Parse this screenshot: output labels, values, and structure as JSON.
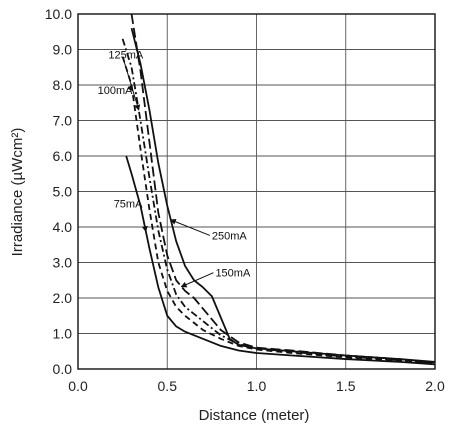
{
  "chart_data": {
    "type": "line",
    "title": "",
    "xlabel": "Distance (meter)",
    "ylabel": "Irradiance (µWcm²)",
    "xlim": [
      0.0,
      2.0
    ],
    "ylim": [
      0.0,
      10.0
    ],
    "xticks": [
      "0.0",
      "0.5",
      "1.0",
      "1.5",
      "2.0"
    ],
    "yticks": [
      "0.0",
      "1.0",
      "2.0",
      "3.0",
      "4.0",
      "5.0",
      "6.0",
      "7.0",
      "8.0",
      "9.0",
      "10.0"
    ],
    "grid": true,
    "series": [
      {
        "name": "250mA",
        "style": "solid",
        "x": [
          0.3,
          0.35,
          0.4,
          0.45,
          0.5,
          0.55,
          0.6,
          0.65,
          0.7,
          0.75,
          0.8,
          0.85,
          0.9,
          1.0,
          1.2,
          1.5,
          1.8,
          2.0
        ],
        "y": [
          9.6,
          8.6,
          7.3,
          5.8,
          4.6,
          3.6,
          2.9,
          2.5,
          2.3,
          2.05,
          1.45,
          0.85,
          0.68,
          0.58,
          0.5,
          0.38,
          0.28,
          0.2
        ]
      },
      {
        "name": "150mA",
        "style": "long-dash",
        "x": [
          0.3,
          0.35,
          0.4,
          0.45,
          0.5,
          0.55,
          0.6,
          0.65,
          0.7,
          0.8,
          0.9,
          1.0,
          1.2,
          1.5,
          1.8,
          2.0
        ],
        "y": [
          10.0,
          8.4,
          6.4,
          4.4,
          3.2,
          2.5,
          2.2,
          2.0,
          1.7,
          1.1,
          0.75,
          0.6,
          0.52,
          0.38,
          0.28,
          0.18
        ]
      },
      {
        "name": "125mA",
        "style": "dash-dot",
        "x": [
          0.25,
          0.3,
          0.35,
          0.4,
          0.45,
          0.5,
          0.55,
          0.6,
          0.7,
          0.8,
          0.9,
          1.0,
          1.2,
          1.5,
          1.8,
          2.0
        ],
        "y": [
          9.3,
          8.5,
          7.0,
          5.4,
          3.9,
          2.8,
          2.1,
          1.75,
          1.35,
          0.95,
          0.7,
          0.58,
          0.48,
          0.35,
          0.25,
          0.17
        ]
      },
      {
        "name": "100mA",
        "style": "dash",
        "x": [
          0.25,
          0.3,
          0.35,
          0.4,
          0.45,
          0.5,
          0.55,
          0.6,
          0.7,
          0.8,
          0.9,
          1.0,
          1.2,
          1.5,
          1.8,
          2.0
        ],
        "y": [
          8.8,
          8.0,
          6.2,
          4.5,
          3.0,
          2.2,
          1.75,
          1.5,
          1.1,
          0.85,
          0.65,
          0.55,
          0.45,
          0.33,
          0.23,
          0.15
        ]
      },
      {
        "name": "75mA",
        "style": "solid",
        "x": [
          0.27,
          0.3,
          0.35,
          0.4,
          0.45,
          0.5,
          0.55,
          0.6,
          0.7,
          0.8,
          0.9,
          1.0,
          1.2,
          1.5,
          1.8,
          2.0
        ],
        "y": [
          6.0,
          5.5,
          4.6,
          3.4,
          2.3,
          1.5,
          1.2,
          1.05,
          0.85,
          0.65,
          0.52,
          0.45,
          0.38,
          0.28,
          0.2,
          0.13
        ]
      }
    ],
    "annotations": [
      {
        "text": "125mA",
        "x": 0.17,
        "y": 8.75
      },
      {
        "text": "100mA",
        "x": 0.11,
        "y": 7.75
      },
      {
        "text": "75mA",
        "x": 0.2,
        "y": 4.55
      },
      {
        "text": "250mA",
        "x": 0.75,
        "y": 3.65
      },
      {
        "text": "150mA",
        "x": 0.77,
        "y": 2.6
      }
    ]
  }
}
